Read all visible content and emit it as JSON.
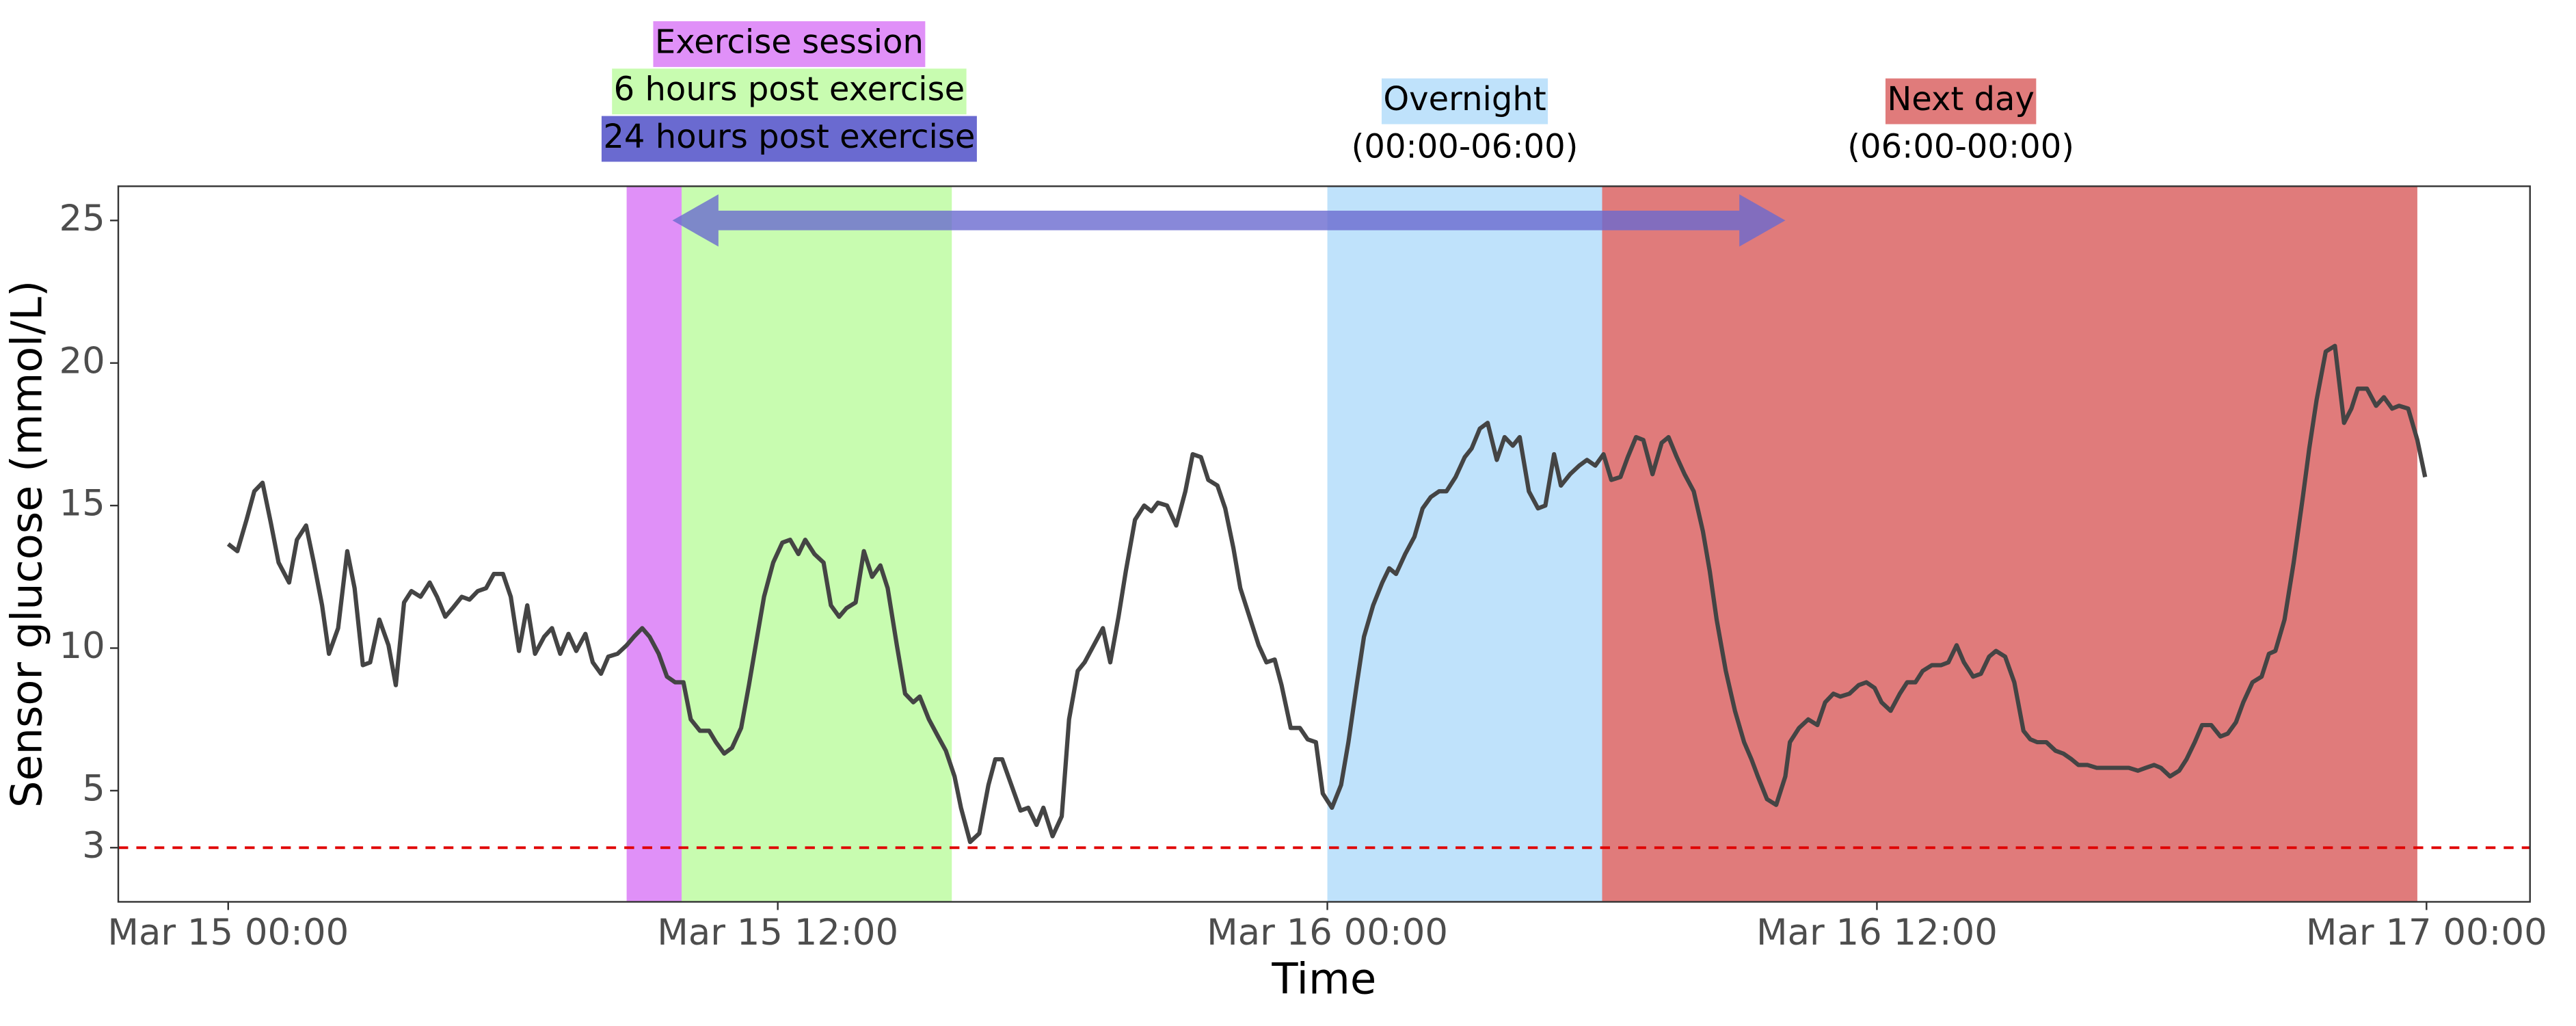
{
  "chart_data": {
    "type": "line",
    "x_label": "Time",
    "y_label": "Sensor glucose (mmol/L)",
    "xlim": [
      -2.4,
      50.26
    ],
    "ylim": [
      1.1,
      26.2
    ],
    "xticks": [
      {
        "value": 0,
        "label": "Mar 15 00:00"
      },
      {
        "value": 12,
        "label": "Mar 15 12:00"
      },
      {
        "value": 24,
        "label": "Mar 16 00:00"
      },
      {
        "value": 36,
        "label": "Mar 16 12:00"
      },
      {
        "value": 48,
        "label": "Mar 17 00:00"
      }
    ],
    "yticks": [
      3,
      5,
      10,
      15,
      20,
      25
    ],
    "grid": false,
    "regions": [
      {
        "name": "Exercise session",
        "start": 8.7,
        "end": 9.9,
        "color": "#e090f8"
      },
      {
        "name": "6 hours post exercise",
        "start": 9.9,
        "end": 15.8,
        "color": "#c8fcb0"
      },
      {
        "name": "Overnight",
        "sublabel": "(00:00-06:00)",
        "start": 24,
        "end": 30,
        "color": "#bfe2fb"
      },
      {
        "name": "Next day",
        "sublabel": "(06:00-00:00)",
        "start": 30,
        "end": 47.8,
        "color": "#e07b7b"
      }
    ],
    "arrow": {
      "name": "24 hours post exercise",
      "start": 9.7,
      "end": 34.0,
      "y": 25,
      "color": "#6a6ad0"
    },
    "hline": {
      "y": 3,
      "color": "#e00000"
    },
    "series": [
      {
        "name": "Sensor glucose",
        "color": "#444444",
        "x": [
          0,
          0.2,
          0.4,
          0.57,
          0.75,
          0.93,
          1.1,
          1.33,
          1.5,
          1.7,
          1.87,
          2.05,
          2.2,
          2.4,
          2.6,
          2.76,
          2.94,
          3.1,
          3.3,
          3.5,
          3.66,
          3.84,
          4.0,
          4.2,
          4.4,
          4.56,
          4.74,
          4.9,
          5.1,
          5.27,
          5.45,
          5.63,
          5.8,
          6.0,
          6.17,
          6.35,
          6.53,
          6.7,
          6.9,
          7.07,
          7.25,
          7.43,
          7.6,
          7.8,
          7.96,
          8.14,
          8.3,
          8.5,
          8.7,
          8.86,
          9.04,
          9.2,
          9.4,
          9.58,
          9.76,
          9.94,
          10.1,
          10.3,
          10.5,
          10.65,
          10.83,
          11.0,
          11.2,
          11.37,
          11.55,
          11.7,
          11.9,
          12.1,
          12.27,
          12.45,
          12.6,
          12.8,
          13.0,
          13.16,
          13.34,
          13.5,
          13.7,
          13.88,
          14.06,
          14.24,
          14.4,
          14.6,
          14.78,
          14.96,
          15.1,
          15.3,
          15.5,
          15.67,
          15.86,
          16.0,
          16.2,
          16.4,
          16.6,
          16.75,
          16.9,
          17.1,
          17.3,
          17.47,
          17.65,
          17.8,
          18.0,
          18.2,
          18.36,
          18.55,
          18.7,
          18.9,
          19.1,
          19.26,
          19.44,
          19.6,
          19.8,
          20.0,
          20.16,
          20.3,
          20.5,
          20.7,
          20.9,
          21.06,
          21.24,
          21.4,
          21.6,
          21.77,
          21.95,
          22.1,
          22.3,
          22.5,
          22.67,
          22.85,
          23.0,
          23.2,
          23.4,
          23.57,
          23.75,
          23.9,
          24.1,
          24.3,
          24.46,
          24.64,
          24.8,
          25.0,
          25.2,
          25.35,
          25.5,
          25.7,
          25.9,
          26.08,
          26.26,
          26.44,
          26.6,
          26.8,
          27.0,
          27.15,
          27.33,
          27.5,
          27.7,
          27.87,
          28.05,
          28.2,
          28.4,
          28.6,
          28.76,
          28.95,
          29.1,
          29.3,
          29.5,
          29.67,
          29.85,
          30.03,
          30.2,
          30.4,
          30.56,
          30.74,
          30.9,
          31.1,
          31.3,
          31.45,
          31.63,
          31.8,
          32.0,
          32.2,
          32.35,
          32.5,
          32.7,
          32.9,
          33.1,
          33.26,
          33.4,
          33.6,
          33.8,
          34.0,
          34.1,
          34.3,
          34.5,
          34.7,
          34.87,
          35.05,
          35.2,
          35.4,
          35.6,
          35.77,
          35.95,
          36.1,
          36.3,
          36.5,
          36.66,
          36.84,
          37.0,
          37.2,
          37.4,
          37.56,
          37.74,
          37.9,
          38.1,
          38.27,
          38.45,
          38.6,
          38.8,
          39.0,
          39.2,
          39.35,
          39.5,
          39.7,
          39.9,
          40.07,
          40.25,
          40.4,
          40.6,
          40.8,
          40.97,
          41.15,
          41.3,
          41.5,
          41.7,
          41.87,
          42.05,
          42.2,
          42.4,
          42.6,
          42.76,
          42.94,
          43.1,
          43.3,
          43.5,
          43.66,
          43.84,
          44.0,
          44.2,
          44.4,
          44.56,
          44.7,
          44.9,
          45.1,
          45.3,
          45.44,
          45.6,
          45.8,
          46.0,
          46.2,
          46.36,
          46.5,
          46.7,
          46.9,
          47.07,
          47.25,
          47.4,
          47.6,
          47.8,
          47.97
        ],
        "values": [
          13.65,
          13.4,
          14.5,
          15.5,
          15.8,
          14.4,
          13.0,
          12.3,
          13.8,
          14.3,
          13.0,
          11.5,
          9.8,
          10.7,
          13.4,
          12.1,
          9.4,
          9.5,
          11.0,
          10.1,
          8.7,
          11.6,
          12.0,
          11.8,
          12.3,
          11.8,
          11.1,
          11.4,
          11.8,
          11.7,
          12.0,
          12.1,
          12.6,
          12.6,
          11.8,
          9.9,
          11.5,
          9.8,
          10.4,
          10.7,
          9.8,
          10.5,
          9.9,
          10.5,
          9.5,
          9.1,
          9.7,
          9.8,
          10.1,
          10.4,
          10.7,
          10.4,
          9.8,
          9.0,
          8.8,
          8.8,
          7.5,
          7.1,
          7.1,
          6.7,
          6.3,
          6.5,
          7.2,
          8.7,
          10.4,
          11.8,
          13.0,
          13.7,
          13.8,
          13.3,
          13.8,
          13.3,
          13.0,
          11.5,
          11.1,
          11.4,
          11.6,
          13.4,
          12.5,
          12.9,
          12.1,
          10.1,
          8.4,
          8.1,
          8.3,
          7.5,
          6.9,
          6.4,
          5.5,
          4.4,
          3.2,
          3.5,
          5.2,
          6.1,
          6.1,
          5.2,
          4.3,
          4.4,
          3.8,
          4.4,
          3.4,
          4.1,
          7.5,
          9.2,
          9.5,
          10.1,
          10.7,
          9.5,
          11.1,
          12.7,
          14.5,
          15.0,
          14.8,
          15.1,
          15.0,
          14.3,
          15.5,
          16.8,
          16.7,
          15.9,
          15.7,
          14.9,
          13.5,
          12.1,
          11.1,
          10.1,
          9.5,
          9.6,
          8.7,
          7.2,
          7.2,
          6.8,
          6.7,
          4.9,
          4.4,
          5.2,
          6.7,
          8.7,
          10.4,
          11.5,
          12.3,
          12.8,
          12.6,
          13.3,
          13.9,
          14.9,
          15.3,
          15.5,
          15.5,
          16.0,
          16.7,
          17.0,
          17.7,
          17.9,
          16.6,
          17.4,
          17.1,
          17.4,
          15.5,
          14.9,
          15.0,
          16.8,
          15.7,
          16.1,
          16.4,
          16.6,
          16.4,
          16.8,
          15.9,
          16.0,
          16.7,
          17.4,
          17.3,
          16.1,
          17.2,
          17.4,
          16.7,
          16.1,
          15.5,
          14.1,
          12.7,
          11.0,
          9.2,
          7.8,
          6.7,
          6.1,
          5.5,
          4.7,
          4.5,
          5.5,
          6.7,
          7.2,
          7.5,
          7.3,
          8.1,
          8.4,
          8.3,
          8.4,
          8.7,
          8.8,
          8.6,
          8.1,
          7.8,
          8.4,
          8.8,
          8.8,
          9.2,
          9.4,
          9.4,
          9.5,
          10.1,
          9.5,
          9.0,
          9.1,
          9.7,
          9.9,
          9.7,
          8.8,
          7.1,
          6.8,
          6.7,
          6.7,
          6.4,
          6.3,
          6.1,
          5.9,
          5.9,
          5.8,
          5.8,
          5.8,
          5.8,
          5.8,
          5.7,
          5.8,
          5.9,
          5.8,
          5.5,
          5.7,
          6.1,
          6.7,
          7.3,
          7.3,
          6.9,
          7.0,
          7.4,
          8.1,
          8.8,
          9.0,
          9.8,
          9.9,
          11.0,
          13.0,
          15.3,
          17.0,
          18.7,
          20.4,
          20.6,
          17.9,
          18.4,
          19.1,
          19.1,
          18.5,
          18.8,
          18.4,
          18.5,
          18.4,
          17.3,
          16.0
        ]
      }
    ]
  }
}
